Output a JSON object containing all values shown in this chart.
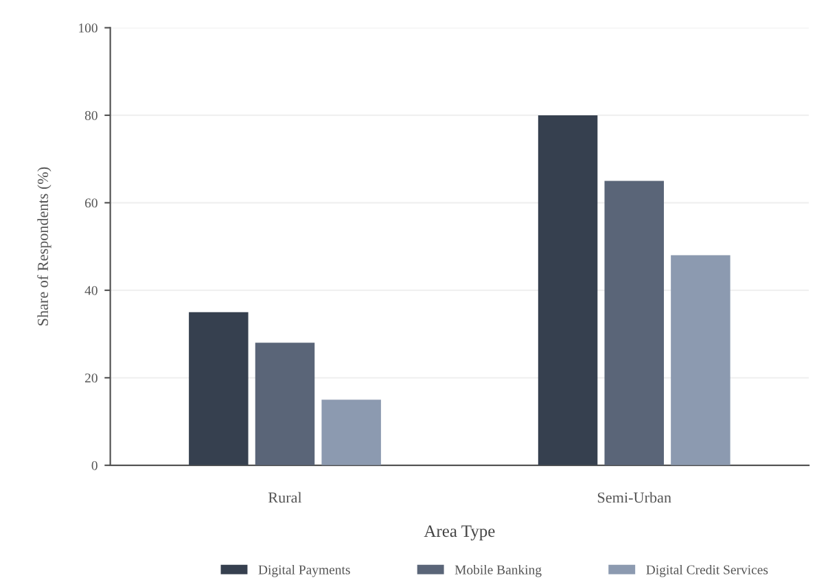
{
  "chart_data": {
    "type": "bar",
    "xlabel": "Area Type",
    "ylabel": "Share of Respondents (%)",
    "categories": [
      "Rural",
      "Semi-Urban"
    ],
    "series": [
      {
        "name": "Digital Payments",
        "color": "#36404f",
        "values": [
          35,
          80
        ]
      },
      {
        "name": "Mobile Banking",
        "color": "#5a6578",
        "values": [
          28,
          65
        ]
      },
      {
        "name": "Digital Credit Services",
        "color": "#8c9ab0",
        "values": [
          15,
          48
        ]
      }
    ],
    "ylim": [
      0,
      100
    ],
    "yticks": [
      0,
      20,
      40,
      60,
      80,
      100
    ],
    "grid": "y",
    "legend": "bottom"
  }
}
